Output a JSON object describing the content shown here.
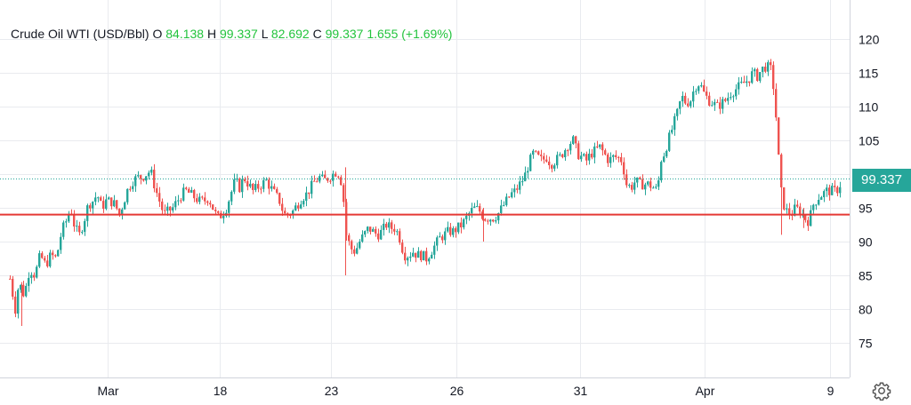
{
  "header": {
    "symbol": "Crude Oil WTI (USD/Bbl)",
    "o_label": "O",
    "o_value": "84.138",
    "h_label": "H",
    "h_value": "99.337",
    "l_label": "L",
    "l_value": "82.692",
    "c_label": "C",
    "c_value": "99.337",
    "change": "1.655 (+1.69%)"
  },
  "last_price_label": "99.337",
  "colors": {
    "up": "#26a69a",
    "down": "#ef5350",
    "support": "#e53935",
    "grid": "#e9ebef",
    "text": "#131722"
  },
  "chart_data": {
    "type": "candlestick",
    "title": "Crude Oil WTI (USD/Bbl)",
    "ylim": [
      70,
      125
    ],
    "yticks": [
      75,
      80,
      85,
      90,
      95,
      100,
      105,
      110,
      115,
      120
    ],
    "xtick_labels": [
      "Mar",
      "18",
      "23",
      "26",
      "31",
      "Apr",
      "9"
    ],
    "support_line": 94,
    "last_price": 99.337,
    "path": [
      [
        0,
        89.0
      ],
      [
        4,
        91.0
      ],
      [
        8,
        86.0
      ],
      [
        12,
        83.0
      ],
      [
        16,
        80.0
      ],
      [
        20,
        84.0
      ],
      [
        26,
        82.0
      ],
      [
        32,
        86.0
      ],
      [
        38,
        85.0
      ],
      [
        44,
        88.0
      ],
      [
        50,
        86.5
      ],
      [
        56,
        88.0
      ],
      [
        62,
        87.5
      ],
      [
        68,
        91.5
      ],
      [
        73,
        93.0
      ],
      [
        78,
        95.0
      ],
      [
        83,
        92.0
      ],
      [
        88,
        91.0
      ],
      [
        93,
        93.0
      ],
      [
        98,
        95.5
      ],
      [
        103,
        96.0
      ],
      [
        108,
        97.0
      ],
      [
        113,
        95.0
      ],
      [
        118,
        96.0
      ],
      [
        123,
        96.0
      ],
      [
        128,
        95.5
      ],
      [
        133,
        94.0
      ],
      [
        138,
        96.0
      ],
      [
        143,
        98.0
      ],
      [
        148,
        99.0
      ],
      [
        153,
        99.5
      ],
      [
        158,
        99.5
      ],
      [
        163,
        100.0
      ],
      [
        168,
        100.5
      ],
      [
        173,
        98.0
      ],
      [
        178,
        96.0
      ],
      [
        183,
        94.0
      ],
      [
        188,
        94.5
      ],
      [
        193,
        95.0
      ],
      [
        198,
        96.0
      ],
      [
        203,
        97.0
      ],
      [
        208,
        97.5
      ],
      [
        213,
        97.0
      ],
      [
        218,
        96.5
      ],
      [
        223,
        96.0
      ],
      [
        228,
        96.0
      ],
      [
        233,
        96.5
      ],
      [
        238,
        95.0
      ],
      [
        243,
        93.5
      ],
      [
        248,
        94.0
      ],
      [
        253,
        95.0
      ],
      [
        258,
        97.0
      ],
      [
        263,
        99.0
      ],
      [
        268,
        98.0
      ],
      [
        273,
        99.5
      ],
      [
        278,
        98.5
      ],
      [
        283,
        97.5
      ],
      [
        288,
        98.0
      ],
      [
        293,
        98.5
      ],
      [
        298,
        99.0
      ],
      [
        303,
        98.0
      ],
      [
        308,
        97.0
      ],
      [
        313,
        96.0
      ],
      [
        318,
        94.0
      ],
      [
        323,
        94.0
      ],
      [
        328,
        94.5
      ],
      [
        333,
        95.5
      ],
      [
        338,
        96.5
      ],
      [
        343,
        97.0
      ],
      [
        348,
        98.0
      ],
      [
        353,
        99.0
      ],
      [
        358,
        99.5
      ],
      [
        363,
        99.0
      ],
      [
        368,
        99.5
      ],
      [
        373,
        100.0
      ],
      [
        378,
        100.5
      ],
      [
        382,
        99.0
      ],
      [
        385,
        96.0
      ],
      [
        388,
        91.0
      ],
      [
        393,
        89.0
      ],
      [
        398,
        88.5
      ],
      [
        403,
        90.0
      ],
      [
        408,
        91.0
      ],
      [
        413,
        92.0
      ],
      [
        418,
        91.5
      ],
      [
        423,
        91.0
      ],
      [
        428,
        91.5
      ],
      [
        433,
        92.5
      ],
      [
        438,
        92.0
      ],
      [
        443,
        92.0
      ],
      [
        448,
        90.5
      ],
      [
        453,
        88.0
      ],
      [
        458,
        88.0
      ],
      [
        463,
        88.5
      ],
      [
        468,
        88.0
      ],
      [
        473,
        88.0
      ],
      [
        478,
        87.5
      ],
      [
        483,
        88.5
      ],
      [
        488,
        89.5
      ],
      [
        493,
        90.5
      ],
      [
        498,
        91.0
      ],
      [
        503,
        91.5
      ],
      [
        508,
        91.5
      ],
      [
        513,
        92.0
      ],
      [
        518,
        92.5
      ],
      [
        523,
        93.5
      ],
      [
        528,
        94.5
      ],
      [
        533,
        95.0
      ],
      [
        538,
        94.5
      ],
      [
        543,
        93.5
      ],
      [
        548,
        93.5
      ],
      [
        553,
        93.5
      ],
      [
        558,
        94.0
      ],
      [
        563,
        95.0
      ],
      [
        568,
        96.0
      ],
      [
        573,
        97.0
      ],
      [
        578,
        97.5
      ],
      [
        583,
        98.5
      ],
      [
        588,
        99.5
      ],
      [
        593,
        101.5
      ],
      [
        598,
        103.0
      ],
      [
        603,
        102.5
      ],
      [
        608,
        102.0
      ],
      [
        613,
        102.5
      ],
      [
        618,
        101.5
      ],
      [
        623,
        102.0
      ],
      [
        628,
        102.5
      ],
      [
        633,
        103.5
      ],
      [
        638,
        104.5
      ],
      [
        643,
        105.0
      ],
      [
        648,
        103.0
      ],
      [
        653,
        102.5
      ],
      [
        658,
        102.0
      ],
      [
        663,
        103.0
      ],
      [
        668,
        103.5
      ],
      [
        673,
        104.0
      ],
      [
        678,
        103.0
      ],
      [
        683,
        102.0
      ],
      [
        688,
        102.5
      ],
      [
        693,
        102.5
      ],
      [
        698,
        102.0
      ],
      [
        703,
        98.5
      ],
      [
        708,
        98.0
      ],
      [
        713,
        99.0
      ],
      [
        718,
        98.5
      ],
      [
        723,
        98.5
      ],
      [
        728,
        98.5
      ],
      [
        733,
        98.0
      ],
      [
        738,
        97.5
      ],
      [
        741,
        102.0
      ],
      [
        745,
        103.0
      ],
      [
        750,
        105.0
      ],
      [
        755,
        107.0
      ],
      [
        760,
        109.0
      ],
      [
        765,
        111.5
      ],
      [
        770,
        110.5
      ],
      [
        775,
        111.0
      ],
      [
        780,
        113.0
      ],
      [
        785,
        113.5
      ],
      [
        790,
        112.0
      ],
      [
        795,
        111.0
      ],
      [
        800,
        110.5
      ],
      [
        805,
        110.0
      ],
      [
        810,
        110.5
      ],
      [
        815,
        111.0
      ],
      [
        820,
        112.0
      ],
      [
        825,
        112.5
      ],
      [
        830,
        113.0
      ],
      [
        835,
        113.5
      ],
      [
        840,
        114.0
      ],
      [
        845,
        115.0
      ],
      [
        850,
        114.5
      ],
      [
        855,
        115.5
      ],
      [
        860,
        116.0
      ],
      [
        865,
        115.5
      ],
      [
        868,
        113.0
      ],
      [
        872,
        107.0
      ],
      [
        875,
        100.0
      ],
      [
        878,
        96.0
      ],
      [
        883,
        94.5
      ],
      [
        888,
        94.0
      ],
      [
        893,
        95.0
      ],
      [
        898,
        94.5
      ],
      [
        903,
        93.5
      ],
      [
        908,
        93.0
      ],
      [
        913,
        95.5
      ],
      [
        918,
        96.5
      ],
      [
        923,
        97.0
      ],
      [
        928,
        97.5
      ],
      [
        933,
        97.5
      ],
      [
        938,
        97.5
      ],
      [
        942,
        98.0
      ],
      [
        945,
        99.3
      ]
    ],
    "spikes": [
      {
        "x": 24,
        "low": 77.5,
        "high": 84.0
      },
      {
        "x": 388,
        "low": 85.0,
        "high": 101.0
      },
      {
        "x": 543,
        "low": 90.0,
        "high": 95.0
      },
      {
        "x": 878,
        "low": 91.0,
        "high": 98.0
      },
      {
        "x": 903,
        "low": 92.0,
        "high": 95.0
      }
    ]
  }
}
